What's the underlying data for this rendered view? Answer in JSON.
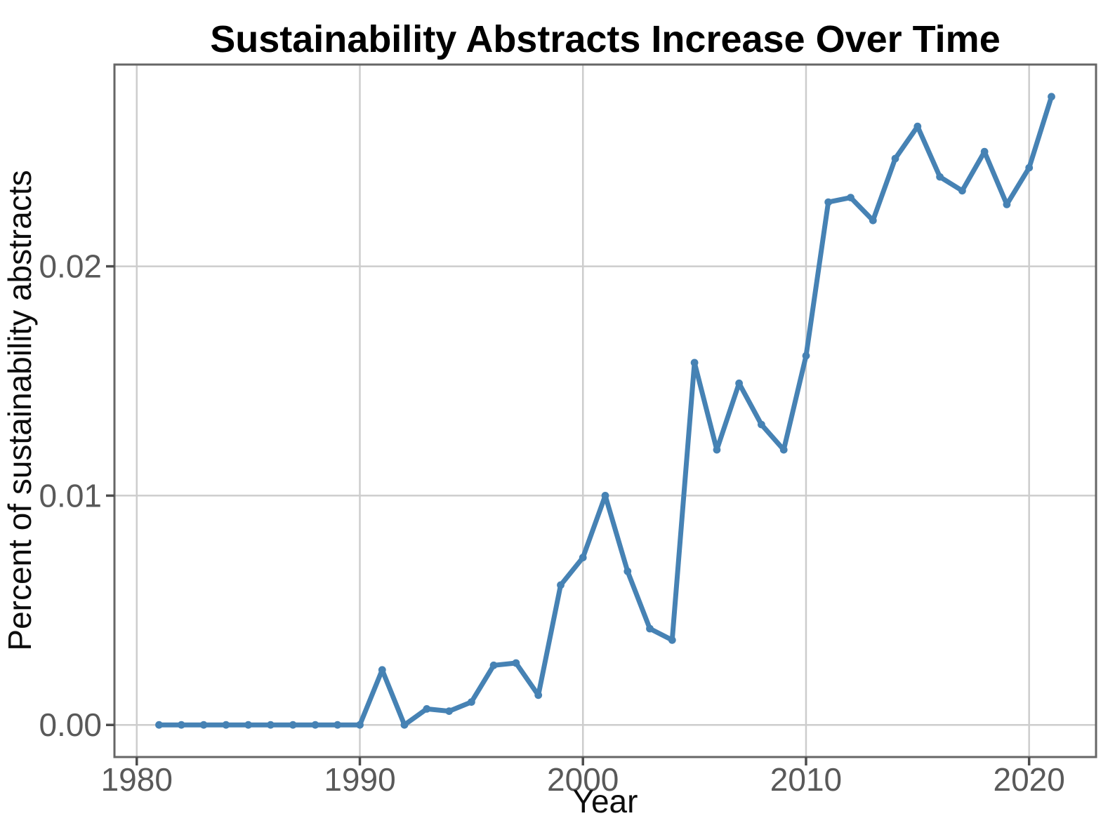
{
  "chart_data": {
    "type": "line",
    "title": "Sustainability Abstracts Increase Over Time",
    "xlabel": "Year",
    "ylabel": "Percent of sustainability abstracts",
    "series": [
      {
        "name": "percent_sustainability_abstracts",
        "x": [
          1981,
          1982,
          1983,
          1984,
          1985,
          1986,
          1987,
          1988,
          1989,
          1990,
          1991,
          1992,
          1993,
          1994,
          1995,
          1996,
          1997,
          1998,
          1999,
          2000,
          2001,
          2002,
          2003,
          2004,
          2005,
          2006,
          2007,
          2008,
          2009,
          2010,
          2011,
          2012,
          2013,
          2014,
          2015,
          2016,
          2017,
          2018,
          2019,
          2020,
          2021
        ],
        "values": [
          0,
          0,
          0,
          0,
          0,
          0,
          0,
          0,
          0,
          0,
          0.0024,
          0,
          0.0007,
          0.0006,
          0.001,
          0.0026,
          0.0027,
          0.0013,
          0.0061,
          0.0073,
          0.01,
          0.0067,
          0.0042,
          0.0037,
          0.0158,
          0.012,
          0.0149,
          0.0131,
          0.012,
          0.0161,
          0.0228,
          0.023,
          0.022,
          0.0247,
          0.0261,
          0.0239,
          0.0233,
          0.025,
          0.0227,
          0.0243,
          0.0274
        ]
      }
    ],
    "xlim": [
      1979,
      2023
    ],
    "ylim": [
      -0.0014,
      0.0288
    ],
    "x_ticks": [
      1980,
      1990,
      2000,
      2010,
      2020
    ],
    "x_tick_labels": [
      "1980",
      "1990",
      "2000",
      "2010",
      "2020"
    ],
    "y_ticks": [
      0,
      0.01,
      0.02
    ],
    "y_tick_labels": [
      "0.00",
      "0.01",
      "0.02"
    ],
    "grid": "major-only",
    "legend": "none",
    "marker": "circle"
  },
  "style": {
    "line_color": "#4682B4",
    "point_color": "#4682B4",
    "grid_color": "#cdcdcd",
    "panel_border_color": "#666666",
    "tick_mark_color": "#4d4d4d",
    "tick_text_color": "#595959",
    "title_color": "#000000",
    "background_color": "#ffffff"
  }
}
